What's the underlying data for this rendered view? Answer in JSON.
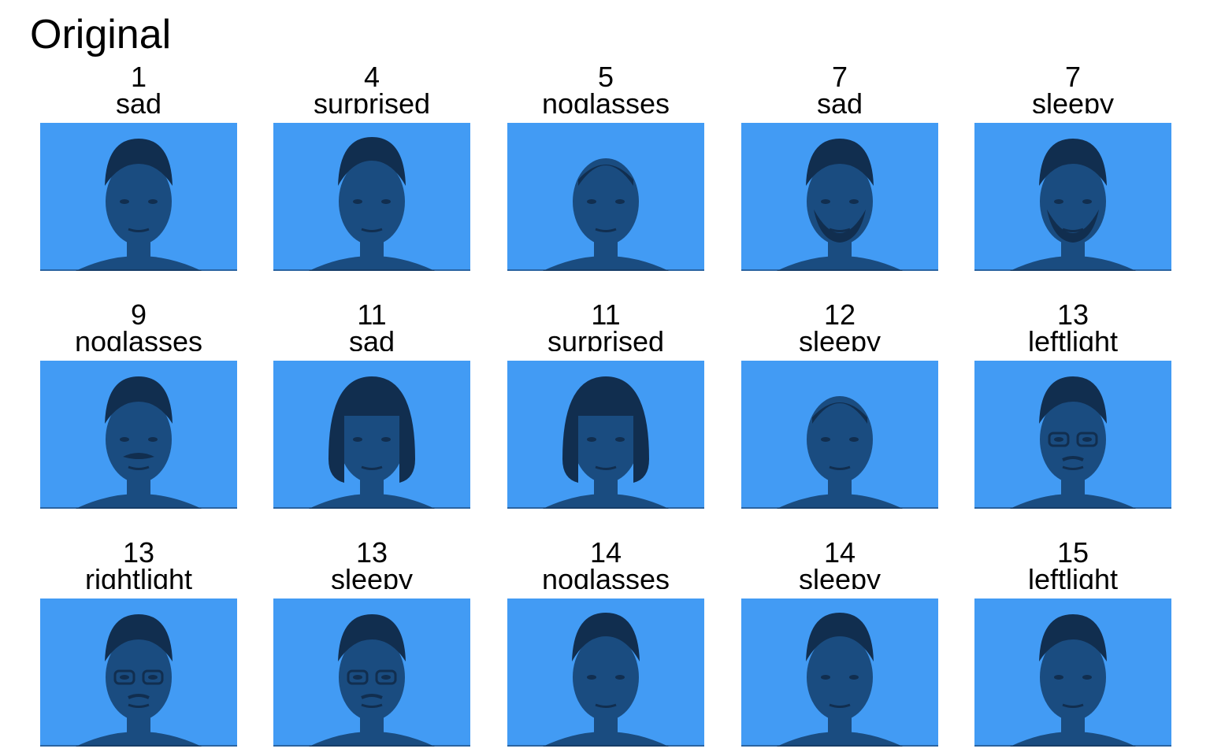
{
  "figure": {
    "title": "Original"
  },
  "colors": {
    "background_tint": "#429bf4",
    "face_shadow": "#1a4c80",
    "hair_dark": "#112e4f"
  },
  "grid": [
    {
      "id": "1",
      "label": "sad",
      "icon": "face-image",
      "hair": "short"
    },
    {
      "id": "4",
      "label": "surprised",
      "icon": "face-image",
      "hair": "short-dark"
    },
    {
      "id": "5",
      "label": "noglasses",
      "icon": "face-image",
      "hair": "bald"
    },
    {
      "id": "7",
      "label": "sad",
      "icon": "face-image",
      "hair": "beard"
    },
    {
      "id": "7",
      "label": "sleepy",
      "icon": "face-image",
      "hair": "beard"
    },
    {
      "id": "9",
      "label": "noglasses",
      "icon": "face-image",
      "hair": "mustache"
    },
    {
      "id": "11",
      "label": "sad",
      "icon": "face-image",
      "hair": "bob"
    },
    {
      "id": "11",
      "label": "surprised",
      "icon": "face-image",
      "hair": "bob"
    },
    {
      "id": "12",
      "label": "sleepy",
      "icon": "face-image",
      "hair": "bald"
    },
    {
      "id": "13",
      "label": "leftlight",
      "icon": "face-image",
      "hair": "glasses"
    },
    {
      "id": "13",
      "label": "rightlight",
      "icon": "face-image",
      "hair": "glasses"
    },
    {
      "id": "13",
      "label": "sleepy",
      "icon": "face-image",
      "hair": "glasses"
    },
    {
      "id": "14",
      "label": "noglasses",
      "icon": "face-image",
      "hair": "short-dark"
    },
    {
      "id": "14",
      "label": "sleepy",
      "icon": "face-image",
      "hair": "short-dark"
    },
    {
      "id": "15",
      "label": "leftlight",
      "icon": "face-image",
      "hair": "short"
    }
  ]
}
